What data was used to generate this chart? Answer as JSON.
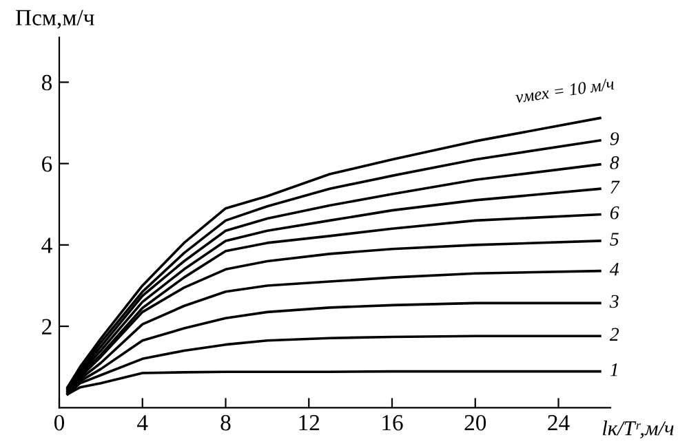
{
  "chart_data": {
    "type": "line",
    "xlabel": "lк/Tʳ,м/ч",
    "ylabel": "Псм,м/ч",
    "x": [
      0.4,
      1,
      2,
      4,
      6,
      8,
      10,
      13,
      16,
      20,
      26
    ],
    "series": [
      {
        "name": "1",
        "color": "#000000",
        "values": [
          0.33,
          0.5,
          0.6,
          0.85,
          0.87,
          0.88,
          0.88,
          0.88,
          0.89,
          0.89,
          0.89
        ]
      },
      {
        "name": "2",
        "color": "#000000",
        "values": [
          0.33,
          0.6,
          0.8,
          1.2,
          1.4,
          1.55,
          1.65,
          1.71,
          1.74,
          1.76,
          1.76
        ]
      },
      {
        "name": "3",
        "color": "#000000",
        "values": [
          0.35,
          0.65,
          0.95,
          1.65,
          1.95,
          2.2,
          2.35,
          2.46,
          2.52,
          2.57,
          2.57
        ]
      },
      {
        "name": "4",
        "color": "#000000",
        "values": [
          0.38,
          0.7,
          1.1,
          2.05,
          2.5,
          2.85,
          3.0,
          3.1,
          3.2,
          3.3,
          3.36
        ]
      },
      {
        "name": "5",
        "color": "#000000",
        "values": [
          0.4,
          0.75,
          1.25,
          2.35,
          2.95,
          3.4,
          3.6,
          3.78,
          3.9,
          4.0,
          4.1
        ]
      },
      {
        "name": "6",
        "color": "#000000",
        "values": [
          0.43,
          0.8,
          1.3,
          2.45,
          3.2,
          3.85,
          4.05,
          4.22,
          4.4,
          4.6,
          4.75
        ]
      },
      {
        "name": "7",
        "color": "#000000",
        "values": [
          0.45,
          0.85,
          1.4,
          2.6,
          3.4,
          4.1,
          4.35,
          4.6,
          4.85,
          5.1,
          5.38
        ]
      },
      {
        "name": "8",
        "color": "#000000",
        "values": [
          0.47,
          0.9,
          1.5,
          2.75,
          3.6,
          4.35,
          4.65,
          4.97,
          5.25,
          5.6,
          5.98
        ]
      },
      {
        "name": "9",
        "color": "#000000",
        "values": [
          0.5,
          0.95,
          1.6,
          2.85,
          3.8,
          4.6,
          4.95,
          5.38,
          5.7,
          6.1,
          6.57
        ]
      },
      {
        "name": "vмех = 10 м/ч",
        "color": "#000000",
        "values": [
          0.5,
          1.0,
          1.7,
          3.0,
          4.05,
          4.9,
          5.2,
          5.74,
          6.1,
          6.55,
          7.12
        ]
      }
    ],
    "xlim": [
      0,
      26.5
    ],
    "ylim": [
      0,
      9.1
    ],
    "xticks": [
      0,
      4,
      8,
      12,
      16,
      20,
      24
    ],
    "yticks": [
      2,
      4,
      6,
      8
    ],
    "grid": false,
    "legend": false,
    "marker": "none",
    "line_style": "solid"
  }
}
